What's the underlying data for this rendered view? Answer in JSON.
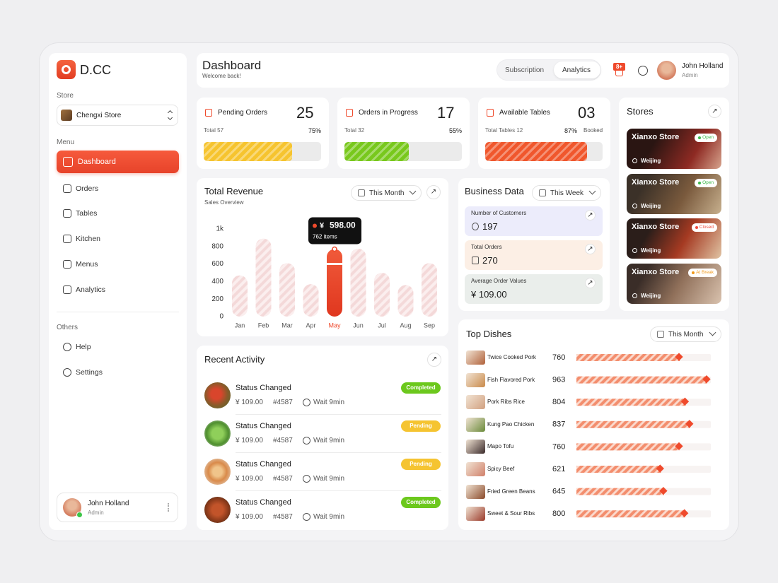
{
  "brand": "D.CC",
  "sidebar": {
    "store_label": "Store",
    "store": "Chengxi Store",
    "menu_label": "Menu",
    "menu": [
      "Dashboard",
      "Orders",
      "Tables",
      "Kitchen",
      "Menus",
      "Analytics"
    ],
    "others_label": "Others",
    "others": [
      "Help",
      "Settings"
    ],
    "user": {
      "name": "John Holland",
      "role": "Admin"
    }
  },
  "header": {
    "title": "Dashboard",
    "subtitle": "Welcome back!",
    "tabs": [
      "Subscription",
      "Analytics"
    ],
    "notifications": "8+",
    "user": {
      "name": "John Holland",
      "role": "Admin"
    }
  },
  "stats": [
    {
      "label": "Pending Orders",
      "value": "25",
      "total": "Total 57",
      "percent": 75,
      "percent_label": "75%",
      "color": "#f6c42f"
    },
    {
      "label": "Orders in Progress",
      "value": "17",
      "total": "Total 32",
      "percent": 55,
      "percent_label": "55%",
      "color": "#78c81c"
    },
    {
      "label": "Available Tables",
      "value": "03",
      "total": "Total Tables 12",
      "percent": 87,
      "percent_label": "87%",
      "note": "Booked",
      "color": "#f0572d"
    }
  ],
  "chart_data": {
    "type": "bar",
    "title": "Total Revenue",
    "subtitle": "Sales Overview",
    "period": "This Month",
    "categories": [
      "Jan",
      "Feb",
      "Mar",
      "Apr",
      "May",
      "Jun",
      "Jul",
      "Aug",
      "Sep"
    ],
    "values": [
      470,
      890,
      610,
      370,
      770,
      775,
      500,
      360,
      610
    ],
    "highlight": "May",
    "color": "#ef4a2c",
    "ylim": [
      0,
      1000
    ],
    "yticks": [
      0,
      200,
      400,
      600,
      800,
      {
        "value": 1000,
        "label": "1k"
      }
    ],
    "tooltip": {
      "currency": "¥",
      "amount": "598.00",
      "items": "762 items"
    }
  },
  "business": {
    "title": "Business Data",
    "period": "This Week",
    "items": [
      {
        "label": "Number of Customers",
        "value": "197",
        "color": "#ececfb"
      },
      {
        "label": "Total Orders",
        "value": "270",
        "color": "#fcefe5"
      },
      {
        "label": "Average Order Values",
        "value": "¥ 109.00",
        "color": "#eaeeeb"
      }
    ]
  },
  "stores": {
    "title": "Stores",
    "items": [
      {
        "name": "Xianxo Store",
        "status": "Open",
        "location": "Weijing",
        "color": "#3cb94a"
      },
      {
        "name": "Xianxo Store",
        "status": "Open",
        "location": "Weijing",
        "color": "#3cb94a"
      },
      {
        "name": "Xianxo Store",
        "status": "Closed",
        "location": "Weijing",
        "color": "#ef4a3c"
      },
      {
        "name": "Xianxo Store",
        "status": "At Break",
        "location": "Weijing",
        "color": "#f09a1c"
      }
    ]
  },
  "activity": {
    "title": "Recent Activity",
    "items": [
      {
        "title": "Status Changed",
        "price": "¥ 109.00",
        "order": "#4587",
        "wait": "Wait 9min",
        "status": "Completed",
        "color": "#6cc81d"
      },
      {
        "title": "Status Changed",
        "price": "¥ 109.00",
        "order": "#4587",
        "wait": "Wait 9min",
        "status": "Pending",
        "color": "#f5c431"
      },
      {
        "title": "Status Changed",
        "price": "¥ 109.00",
        "order": "#4587",
        "wait": "Wait 9min",
        "status": "Pending",
        "color": "#f5c431"
      },
      {
        "title": "Status Changed",
        "price": "¥ 109.00",
        "order": "#4587",
        "wait": "Wait 9min",
        "status": "Completed",
        "color": "#6cc81d"
      }
    ]
  },
  "dishes": {
    "title": "Top Dishes",
    "period": "This Month",
    "items": [
      {
        "name": "Twice Cooked Pork",
        "count": 760
      },
      {
        "name": "Fish Flavored Pork",
        "count": 963
      },
      {
        "name": "Pork Ribs Rice",
        "count": 804
      },
      {
        "name": "Kung Pao Chicken",
        "count": 837
      },
      {
        "name": "Mapo Tofu",
        "count": 760
      },
      {
        "name": "Spicy Beef",
        "count": 621
      },
      {
        "name": "Fried Green Beans",
        "count": 645
      },
      {
        "name": "Sweet & Sour Ribs",
        "count": 800
      }
    ]
  }
}
